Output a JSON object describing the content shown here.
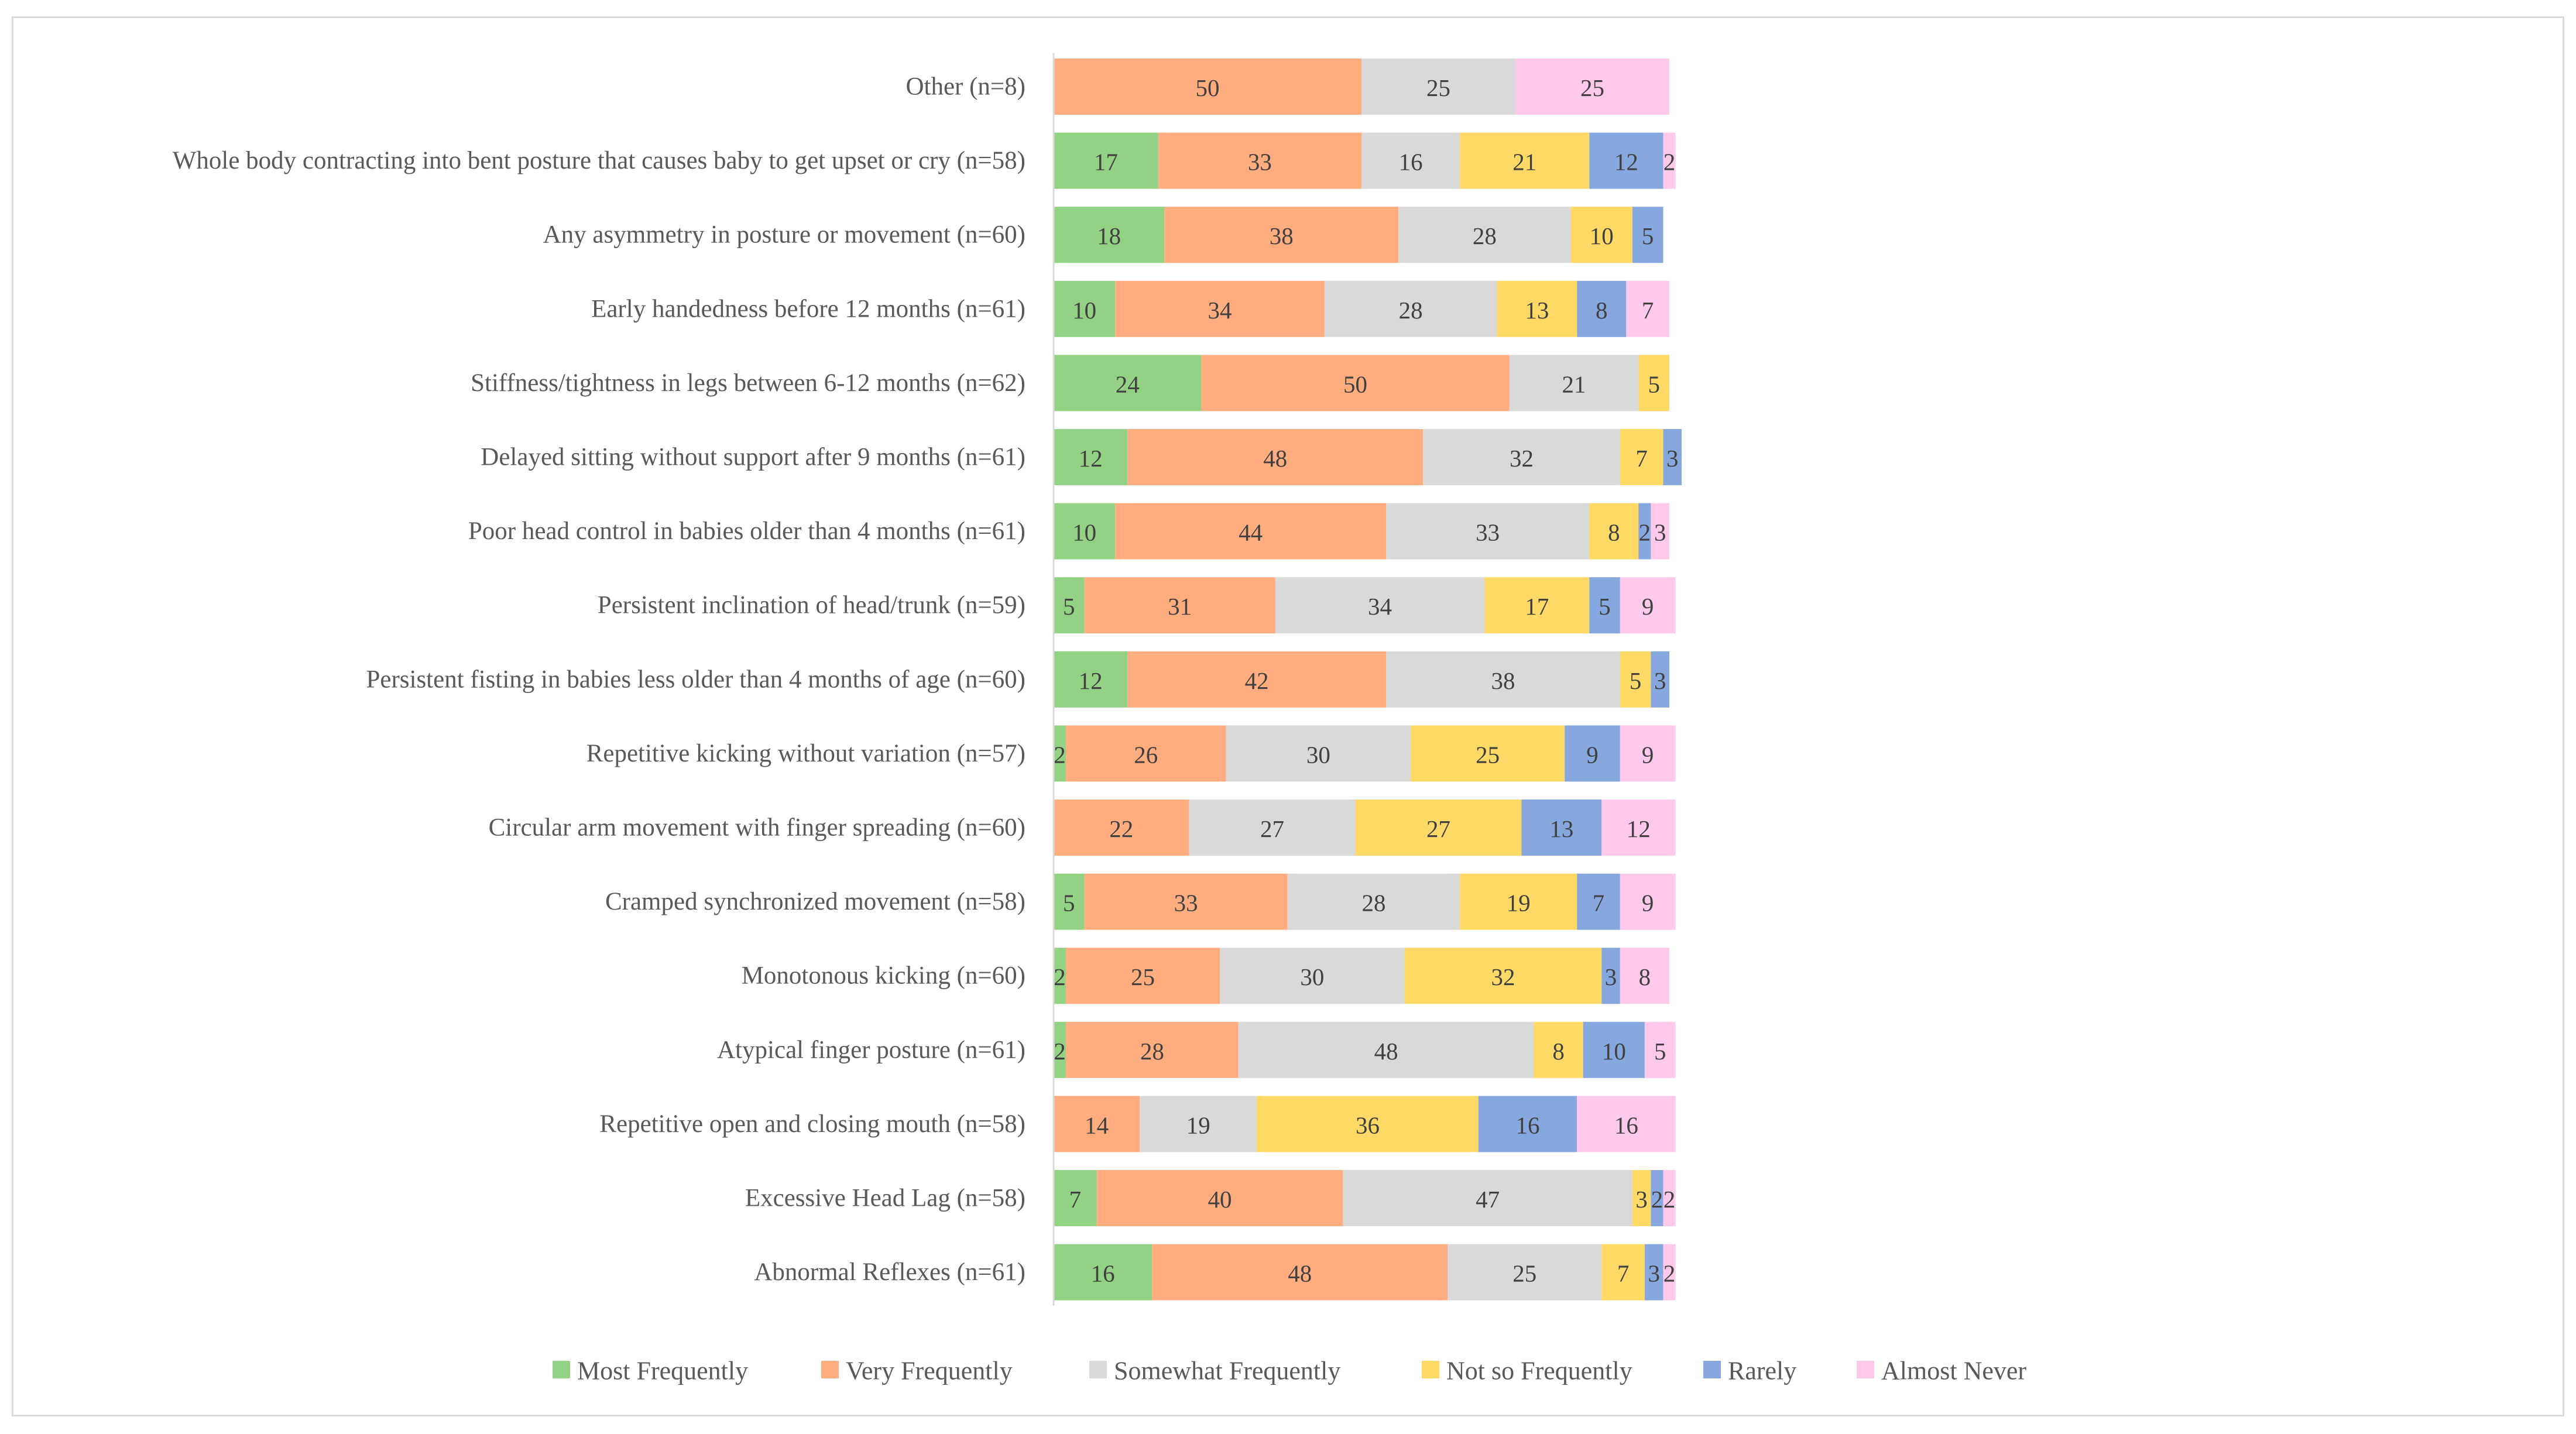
{
  "chart_data": {
    "type": "bar",
    "orientation": "horizontal",
    "stacked": true,
    "categories": [
      "Other (n=8)",
      "Whole body contracting into bent posture that causes baby to get upset or cry (n=58)",
      "Any asymmetry in posture or movement (n=60)",
      "Early handedness before 12 months (n=61)",
      "Stiffness/tightness in legs between 6-12 months (n=62)",
      "Delayed sitting without support after 9 months (n=61)",
      "Poor head control in babies older than 4 months (n=61)",
      "Persistent inclination of head/trunk (n=59)",
      "Persistent fisting in babies less older than 4 months of age (n=60)",
      "Repetitive kicking without variation (n=57)",
      "Circular arm movement with finger spreading (n=60)",
      "Cramped synchronized movement (n=58)",
      "Monotonous kicking (n=60)",
      "Atypical finger posture (n=61)",
      "Repetitive open and closing mouth (n=58)",
      "Excessive Head Lag (n=58)",
      "Abnormal Reflexes (n=61)"
    ],
    "series": [
      {
        "name": "Most Frequently",
        "color": "#93d185",
        "values": [
          0,
          17,
          18,
          10,
          24,
          12,
          10,
          5,
          12,
          2,
          0,
          5,
          2,
          2,
          0,
          7,
          16
        ]
      },
      {
        "name": "Very Frequently",
        "color": "#ffad7f",
        "values": [
          50,
          33,
          38,
          34,
          50,
          48,
          44,
          31,
          42,
          26,
          22,
          33,
          25,
          28,
          14,
          40,
          48
        ]
      },
      {
        "name": "Somewhat Frequently",
        "color": "#d9d9d9",
        "values": [
          25,
          16,
          28,
          28,
          21,
          32,
          33,
          34,
          38,
          30,
          27,
          28,
          30,
          48,
          19,
          47,
          25
        ]
      },
      {
        "name": "Not so Frequently",
        "color": "#ffd966",
        "values": [
          0,
          21,
          10,
          13,
          5,
          7,
          8,
          17,
          5,
          25,
          27,
          19,
          32,
          8,
          36,
          3,
          7
        ]
      },
      {
        "name": "Rarely",
        "color": "#86a8df",
        "values": [
          0,
          12,
          5,
          8,
          0,
          3,
          2,
          5,
          3,
          9,
          13,
          7,
          3,
          10,
          16,
          2,
          3
        ]
      },
      {
        "name": "Almost Never",
        "color": "#ffc9ec",
        "values": [
          25,
          2,
          0,
          7,
          0,
          0,
          3,
          9,
          0,
          9,
          12,
          9,
          8,
          5,
          16,
          2,
          2
        ]
      }
    ],
    "xlim": [
      0,
      100
    ],
    "title": "",
    "xlabel": "",
    "ylabel": "",
    "legend_position": "bottom",
    "grid": false
  }
}
